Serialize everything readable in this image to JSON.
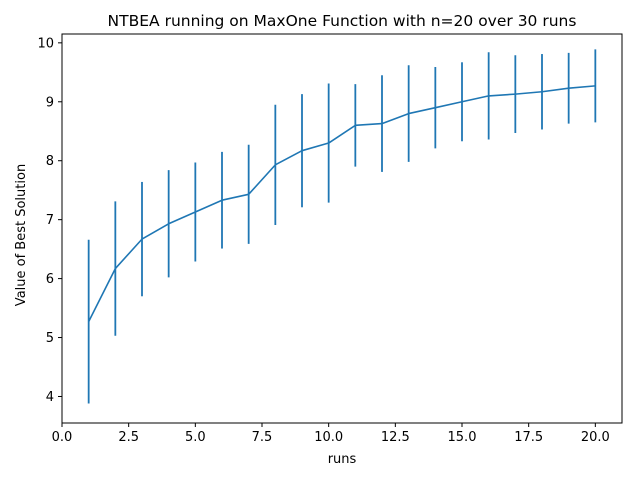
{
  "chart_data": {
    "type": "line",
    "title": "NTBEA running on MaxOne Function with n=20 over 30 runs",
    "xlabel": "runs",
    "ylabel": "Value of Best Solution",
    "xlim": [
      0,
      21
    ],
    "ylim": [
      3.55,
      10.15
    ],
    "grid": false,
    "error_bars": true,
    "color": "#1f77b4",
    "xticks": [
      0.0,
      2.5,
      5.0,
      7.5,
      10.0,
      12.5,
      15.0,
      17.5,
      20.0
    ],
    "xtick_labels": [
      "0.0",
      "2.5",
      "5.0",
      "7.5",
      "10.0",
      "12.5",
      "15.0",
      "17.5",
      "20.0"
    ],
    "yticks": [
      4,
      5,
      6,
      7,
      8,
      9,
      10
    ],
    "ytick_labels": [
      "4",
      "5",
      "6",
      "7",
      "8",
      "9",
      "10"
    ],
    "series": [
      {
        "x": [
          1,
          2,
          3,
          4,
          5,
          6,
          7,
          8,
          9,
          10,
          11,
          12,
          13,
          14,
          15,
          16,
          17,
          18,
          19,
          20
        ],
        "y": [
          5.27,
          6.17,
          6.67,
          6.93,
          7.13,
          7.33,
          7.43,
          7.93,
          8.17,
          8.3,
          8.6,
          8.63,
          8.8,
          8.9,
          9.0,
          9.1,
          9.13,
          9.17,
          9.23,
          9.27
        ],
        "err_low": [
          3.88,
          5.03,
          5.7,
          6.02,
          6.29,
          6.51,
          6.59,
          6.91,
          7.21,
          7.29,
          7.9,
          7.81,
          7.98,
          8.21,
          8.33,
          8.36,
          8.47,
          8.53,
          8.63,
          8.65
        ],
        "err_high": [
          6.66,
          7.31,
          7.64,
          7.84,
          7.97,
          8.15,
          8.27,
          8.95,
          9.13,
          9.31,
          9.3,
          9.45,
          9.62,
          9.59,
          9.67,
          9.84,
          9.79,
          9.81,
          9.83,
          9.89
        ]
      }
    ]
  }
}
